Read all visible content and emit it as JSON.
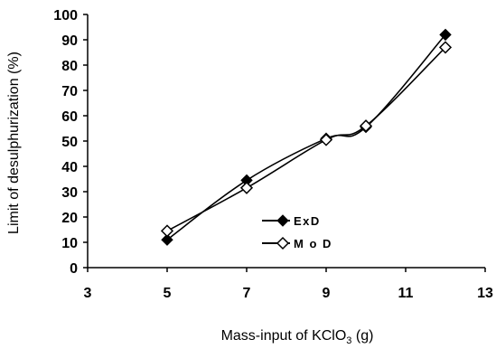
{
  "chart_data": {
    "type": "line",
    "title": "",
    "xlabel": "Mass-input of KClO",
    "xlabel_subscript": "3",
    "xlabel_unit": " (g)",
    "ylabel": "Limit of desulphurization (%)",
    "xlim": [
      3,
      13
    ],
    "ylim": [
      0,
      100
    ],
    "x_ticks": [
      "3",
      "5",
      "7",
      "9",
      "11",
      "13"
    ],
    "y_ticks": [
      "0",
      "10",
      "20",
      "30",
      "40",
      "50",
      "60",
      "70",
      "80",
      "90",
      "100"
    ],
    "grid": false,
    "legend_position": "lower-center",
    "series": [
      {
        "name": "ExD",
        "marker": "filled-diamond",
        "color": "#000000",
        "points": [
          {
            "x": 5,
            "y": 11
          },
          {
            "x": 7,
            "y": 34.5
          },
          {
            "x": 9,
            "y": 51
          },
          {
            "x": 10,
            "y": 55.5
          },
          {
            "x": 12,
            "y": 92
          }
        ]
      },
      {
        "name": "MoD",
        "marker": "open-diamond",
        "color": "#000000",
        "points": [
          {
            "x": 5,
            "y": 14.5
          },
          {
            "x": 7,
            "y": 31.5
          },
          {
            "x": 9,
            "y": 50.5
          },
          {
            "x": 10,
            "y": 56
          },
          {
            "x": 12,
            "y": 87
          }
        ]
      }
    ],
    "legend_labels": [
      "ExD",
      "M o D"
    ]
  }
}
